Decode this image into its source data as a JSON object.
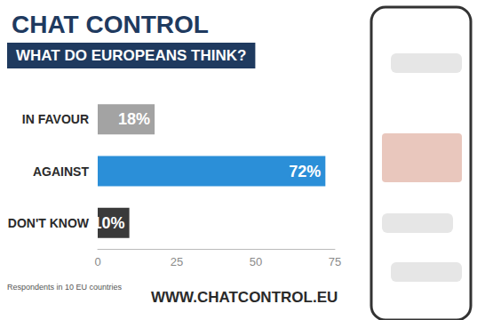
{
  "chart_data": {
    "type": "bar",
    "orientation": "horizontal",
    "title": "CHAT CONTROL",
    "subtitle": "WHAT DO EUROPEANS THINK?",
    "categories": [
      "IN FAVOUR",
      "AGAINST",
      "DON'T KNOW"
    ],
    "values": [
      18,
      72,
      10
    ],
    "value_labels": [
      "18%",
      "72%",
      "10%"
    ],
    "colors": [
      "#a3a3a3",
      "#2b8fd8",
      "#3a3a3a"
    ],
    "xlim": [
      0,
      75
    ],
    "xticks": [
      0,
      25,
      50,
      75
    ],
    "grid": false,
    "data_labels": true,
    "annotations": [
      "WWW.CHATCONTROL.EU",
      "Respondents in 10 EU countries"
    ]
  }
}
